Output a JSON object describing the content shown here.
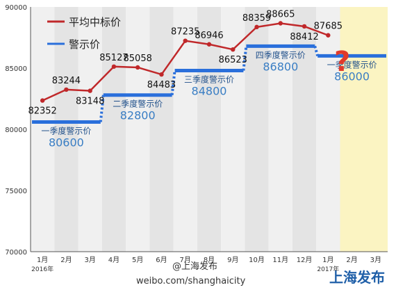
{
  "chart_data": {
    "type": "line",
    "title": "",
    "xlabel": "",
    "ylabel": "",
    "ylim": [
      70000,
      90000
    ],
    "yticks": [
      70000,
      75000,
      80000,
      85000,
      90000
    ],
    "categories": [
      "1月",
      "2月",
      "3月",
      "4月",
      "5月",
      "6月",
      "7月",
      "8月",
      "9月",
      "10月",
      "11月",
      "12月",
      "1月",
      "2月",
      "3月"
    ],
    "year_labels": [
      {
        "index": 0,
        "text": "2016年"
      },
      {
        "index": 12,
        "text": "2017年"
      }
    ],
    "legend": {
      "placement": "top-left",
      "items": [
        {
          "name": "平均中标价",
          "color": "#c0282a"
        },
        {
          "name": "警示价",
          "color": "#2a6fdb"
        }
      ]
    },
    "series": [
      {
        "name": "平均中标价",
        "color": "#c0282a",
        "values": [
          82352,
          83244,
          83148,
          85127,
          85058,
          84483,
          87235,
          86946,
          86523,
          88359,
          88665,
          88412,
          87685,
          null,
          null
        ]
      }
    ],
    "data_label_pos": [
      "below",
      "above",
      "below",
      "above",
      "above",
      "below",
      "above",
      "above",
      "below",
      "above",
      "above",
      "below",
      "above"
    ],
    "warning_price_bands": [
      {
        "label": "一季度警示价",
        "value": 80600,
        "from": 0,
        "to": 2
      },
      {
        "label": "二季度警示价",
        "value": 82800,
        "from": 3,
        "to": 5
      },
      {
        "label": "三季度警示价",
        "value": 84800,
        "from": 6,
        "to": 8
      },
      {
        "label": "四季度警示价",
        "value": 86800,
        "from": 9,
        "to": 11
      },
      {
        "label": "一季度警示价",
        "value": 86000,
        "from": 12,
        "to": 14
      }
    ],
    "band_color": "#2a6fdb",
    "highlight": {
      "from": 13,
      "to": 14,
      "color": "#fbf4c2"
    },
    "unknown_marker": "?",
    "grid": "vertical-stripes"
  },
  "watermark": {
    "weibo_handle": "@上海发布",
    "weibo_url": "weibo.com/shanghaicity",
    "brand": "上海发布"
  }
}
